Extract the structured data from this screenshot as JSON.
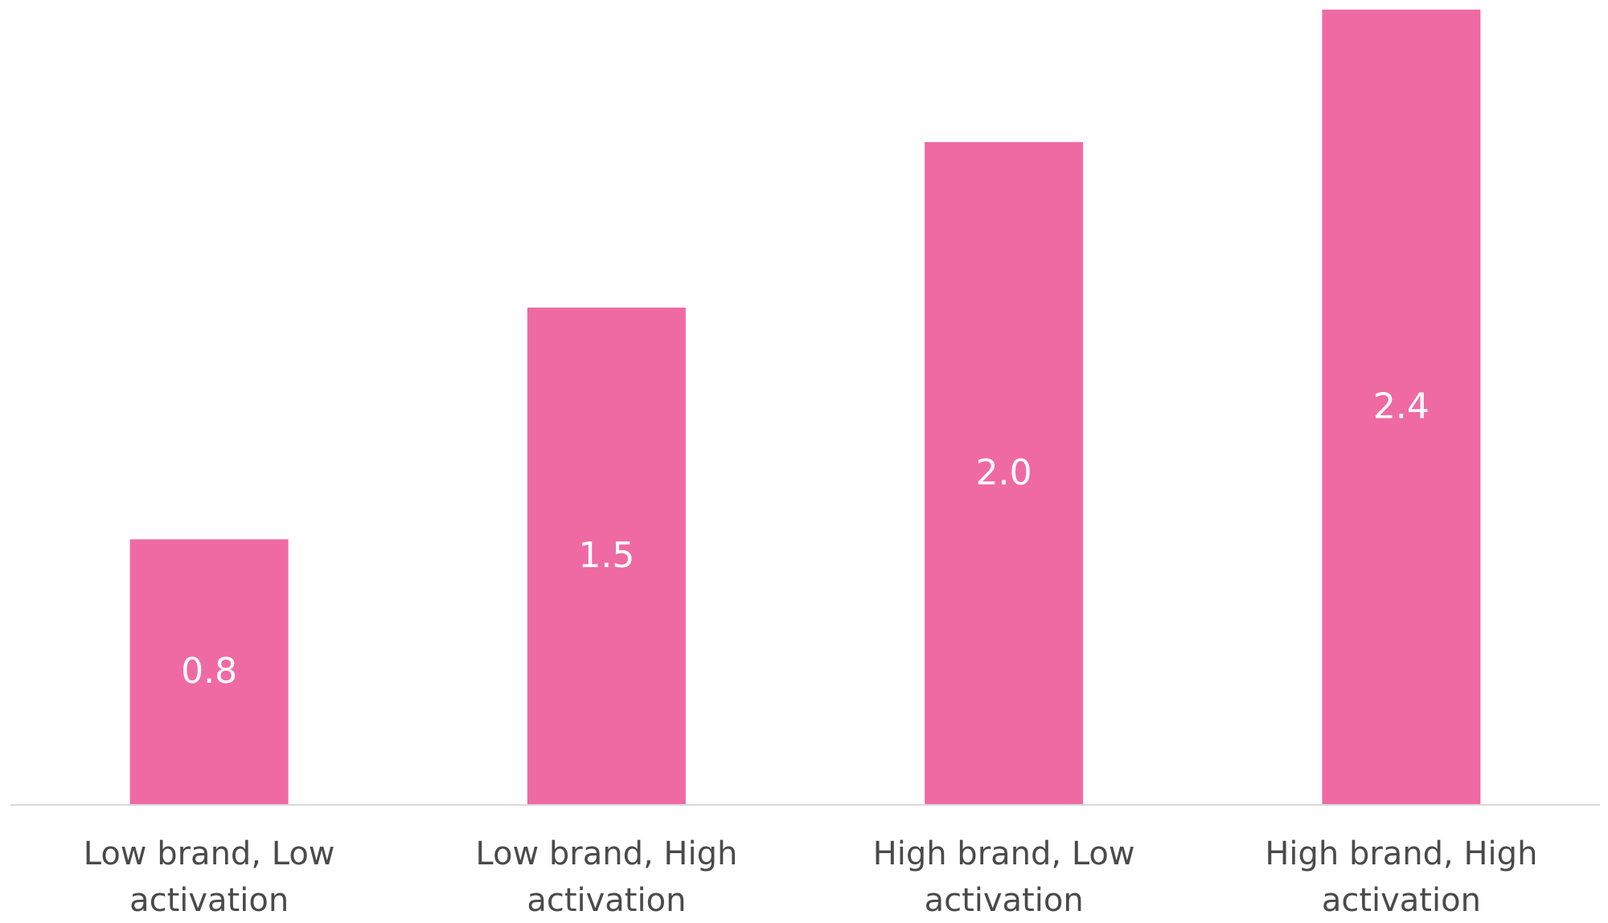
{
  "chart_data": {
    "type": "bar",
    "categories": [
      "Low brand, Low activation",
      "Low brand, High activation",
      "High brand, Low activation",
      "High brand, High activation"
    ],
    "values": [
      0.8,
      1.5,
      2.0,
      2.4
    ],
    "value_labels": [
      "0.8",
      "1.5",
      "2.0",
      "2.4"
    ],
    "color": "#ef6aa3"
  }
}
